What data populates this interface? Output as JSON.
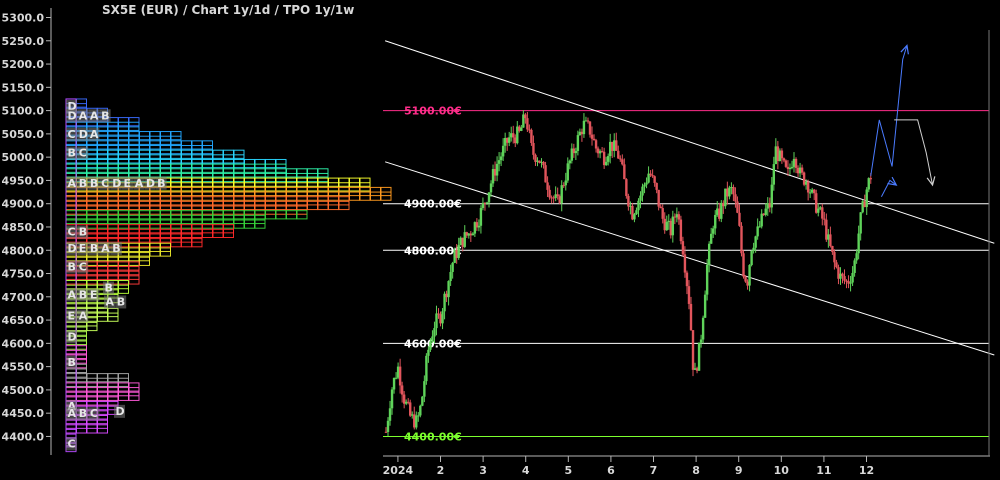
{
  "chart_data": {
    "type": "candlestick",
    "title": "SX5E (EUR) /  Chart 1y/1d / TPO 1y/1w",
    "ylim": [
      4380,
      5320
    ],
    "y_ticks": [
      "5300.0",
      "5250.0",
      "5200.0",
      "5150.0",
      "5100.0",
      "5050.0",
      "5000.0",
      "4950.0",
      "4900.0",
      "4850.0",
      "4800.0",
      "4750.0",
      "4700.0",
      "4650.0",
      "4600.0",
      "4550.0",
      "4500.0",
      "4450.0",
      "4400.0"
    ],
    "x_ticks": [
      {
        "label": "2024",
        "month": 1
      },
      {
        "label": "2",
        "month": 2
      },
      {
        "label": "3",
        "month": 3
      },
      {
        "label": "4",
        "month": 4
      },
      {
        "label": "5",
        "month": 5
      },
      {
        "label": "6",
        "month": 6
      },
      {
        "label": "7",
        "month": 7
      },
      {
        "label": "8",
        "month": 8
      },
      {
        "label": "9",
        "month": 9
      },
      {
        "label": "10",
        "month": 10
      },
      {
        "label": "11",
        "month": 11
      },
      {
        "label": "12",
        "month": 12
      }
    ],
    "levels": [
      {
        "value": 5100,
        "label": "5100.00€",
        "color": "#ff2d8a"
      },
      {
        "value": 4900,
        "label": "4900.00€",
        "color": "#ffffff"
      },
      {
        "value": 4800,
        "label": "4800.00€",
        "color": "#ffffff"
      },
      {
        "value": 4600,
        "label": "4600.00€",
        "color": "#ffffff"
      },
      {
        "value": 4400,
        "label": "4400.00€",
        "color": "#7cff2e"
      }
    ],
    "trend_lines": [
      {
        "from": [
          0.7,
          5250
        ],
        "to": [
          15.0,
          4815
        ]
      },
      {
        "from": [
          0.7,
          4990
        ],
        "to": [
          15.0,
          4575
        ]
      }
    ],
    "price_path": [
      [
        0.72,
        4410
      ],
      [
        0.85,
        4500
      ],
      [
        1.0,
        4550
      ],
      [
        1.15,
        4480
      ],
      [
        1.3,
        4440
      ],
      [
        1.45,
        4430
      ],
      [
        1.55,
        4470
      ],
      [
        1.7,
        4580
      ],
      [
        1.85,
        4640
      ],
      [
        2.0,
        4660
      ],
      [
        2.15,
        4720
      ],
      [
        2.3,
        4780
      ],
      [
        2.5,
        4820
      ],
      [
        2.7,
        4840
      ],
      [
        2.9,
        4870
      ],
      [
        3.1,
        4920
      ],
      [
        3.3,
        4980
      ],
      [
        3.6,
        5040
      ],
      [
        3.85,
        5050
      ],
      [
        4.0,
        5090
      ],
      [
        4.15,
        5010
      ],
      [
        4.3,
        5000
      ],
      [
        4.45,
        4960
      ],
      [
        4.6,
        4920
      ],
      [
        4.75,
        4900
      ],
      [
        4.9,
        4950
      ],
      [
        5.0,
        4980
      ],
      [
        5.15,
        5020
      ],
      [
        5.35,
        5070
      ],
      [
        5.5,
        5060
      ],
      [
        5.65,
        5020
      ],
      [
        5.85,
        5000
      ],
      [
        6.0,
        5030
      ],
      [
        6.2,
        5000
      ],
      [
        6.35,
        4930
      ],
      [
        6.5,
        4880
      ],
      [
        6.7,
        4920
      ],
      [
        6.9,
        4970
      ],
      [
        7.05,
        4930
      ],
      [
        7.2,
        4870
      ],
      [
        7.4,
        4840
      ],
      [
        7.55,
        4890
      ],
      [
        7.7,
        4800
      ],
      [
        7.85,
        4680
      ],
      [
        7.95,
        4520
      ],
      [
        8.1,
        4600
      ],
      [
        8.25,
        4760
      ],
      [
        8.4,
        4860
      ],
      [
        8.55,
        4880
      ],
      [
        8.7,
        4920
      ],
      [
        8.85,
        4930
      ],
      [
        9.0,
        4860
      ],
      [
        9.1,
        4760
      ],
      [
        9.2,
        4730
      ],
      [
        9.3,
        4810
      ],
      [
        9.45,
        4840
      ],
      [
        9.6,
        4880
      ],
      [
        9.75,
        4900
      ],
      [
        9.85,
        5020
      ],
      [
        10.0,
        4990
      ],
      [
        10.15,
        4960
      ],
      [
        10.3,
        5010
      ],
      [
        10.45,
        4960
      ],
      [
        10.6,
        4950
      ],
      [
        10.75,
        4910
      ],
      [
        10.9,
        4880
      ],
      [
        11.0,
        4860
      ],
      [
        11.1,
        4820
      ],
      [
        11.25,
        4770
      ],
      [
        11.4,
        4740
      ],
      [
        11.55,
        4730
      ],
      [
        11.7,
        4760
      ],
      [
        11.85,
        4860
      ],
      [
        12.0,
        4930
      ],
      [
        12.1,
        4960
      ]
    ],
    "projection_paths": [
      [
        [
          12.1,
          4960
        ],
        [
          12.3,
          5080
        ],
        [
          12.6,
          4980
        ],
        [
          12.85,
          5210
        ],
        [
          12.95,
          5240
        ]
      ],
      [
        [
          12.35,
          4915
        ],
        [
          12.55,
          4950
        ],
        [
          12.7,
          4940
        ]
      ],
      [
        [
          12.65,
          5080
        ],
        [
          13.2,
          5080
        ],
        [
          13.4,
          5010
        ],
        [
          13.55,
          4940
        ]
      ]
    ],
    "tpo_profile": {
      "description": "market profile histogram by price level",
      "rows": [
        {
          "price": 5110,
          "letters": "D"
        },
        {
          "price": 5090,
          "letters": "DAAB"
        },
        {
          "price": 5050,
          "letters": "CDA"
        },
        {
          "price": 5010,
          "letters": "BC"
        },
        {
          "price": 4945,
          "letters": "ABBCDEADB"
        },
        {
          "price": 4840,
          "letters": "CB"
        },
        {
          "price": 4805,
          "letters": "DEBAB"
        },
        {
          "price": 4765,
          "letters": "BC"
        },
        {
          "price": 4705,
          "letters": "ABE"
        },
        {
          "price": 4720,
          "letters": "B"
        },
        {
          "price": 4690,
          "letters": "AB"
        },
        {
          "price": 4660,
          "letters": "EA"
        },
        {
          "price": 4615,
          "letters": "D"
        },
        {
          "price": 4560,
          "letters": "B"
        },
        {
          "price": 4465,
          "letters": "A"
        },
        {
          "price": 4450,
          "letters": "ABC"
        },
        {
          "price": 4455,
          "letters": "D"
        },
        {
          "price": 4385,
          "letters": "C"
        }
      ]
    }
  }
}
